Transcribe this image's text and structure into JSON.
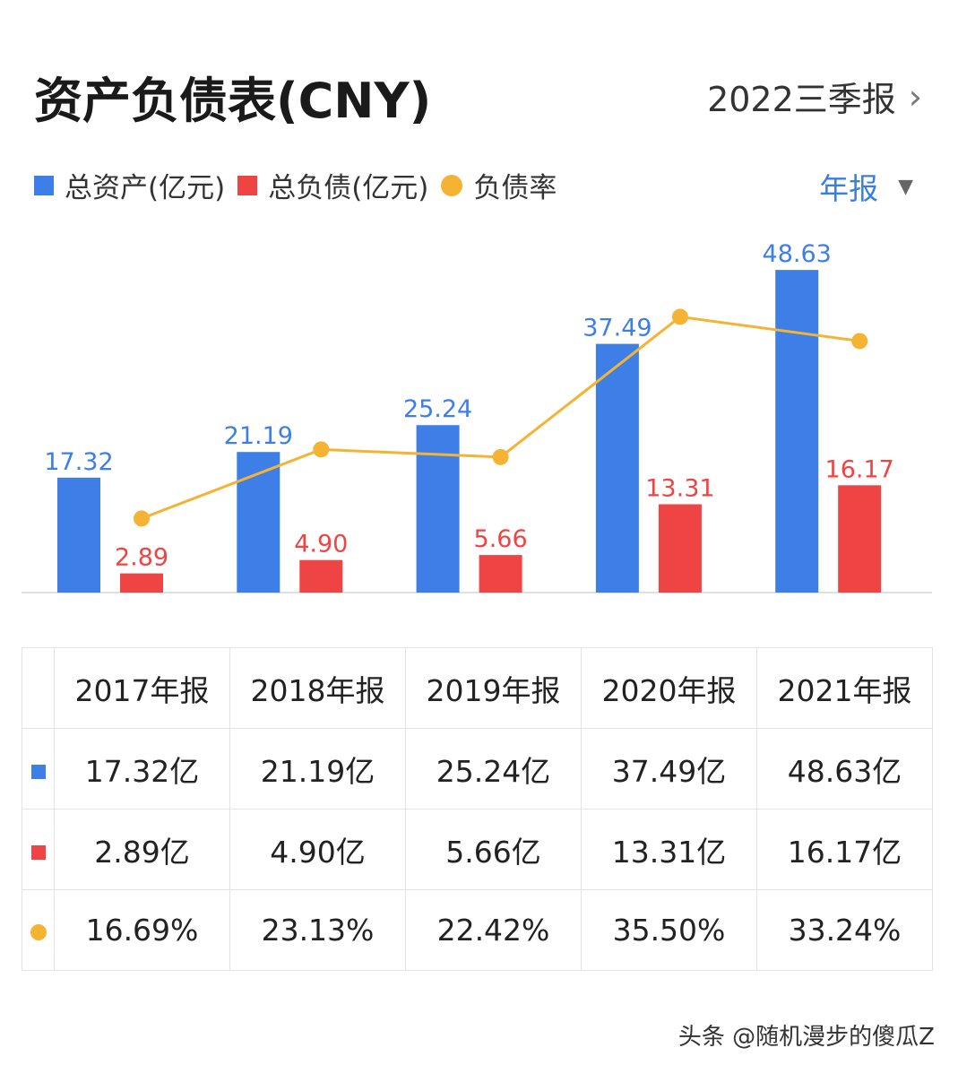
{
  "header": {
    "title": "资产负债表(CNY)",
    "period": "2022三季报"
  },
  "legend": {
    "assets": "总资产(亿元)",
    "liabilities": "总负债(亿元)",
    "ratio": "负债率"
  },
  "period_select": "年报",
  "colors": {
    "assets": "#3d7fe6",
    "liabilities": "#ef4444",
    "ratio": "#f5b334"
  },
  "chart_data": {
    "type": "bar",
    "categories": [
      "2017年报",
      "2018年报",
      "2019年报",
      "2020年报",
      "2021年报"
    ],
    "series": [
      {
        "name": "总资产(亿元)",
        "type": "bar",
        "values": [
          17.32,
          21.19,
          25.24,
          37.49,
          48.63
        ],
        "labels": [
          "17.32",
          "21.19",
          "25.24",
          "37.49",
          "48.63"
        ]
      },
      {
        "name": "总负债(亿元)",
        "type": "bar",
        "values": [
          2.89,
          4.9,
          5.66,
          13.31,
          16.17
        ],
        "labels": [
          "2.89",
          "4.90",
          "5.66",
          "13.31",
          "16.17"
        ]
      },
      {
        "name": "负债率",
        "type": "line",
        "values": [
          16.69,
          23.13,
          22.42,
          35.5,
          33.24
        ]
      }
    ]
  },
  "table": {
    "headers": [
      "2017年报",
      "2018年报",
      "2019年报",
      "2020年报",
      "2021年报"
    ],
    "rows": [
      [
        "17.32亿",
        "21.19亿",
        "25.24亿",
        "37.49亿",
        "48.63亿"
      ],
      [
        "2.89亿",
        "4.90亿",
        "5.66亿",
        "13.31亿",
        "16.17亿"
      ],
      [
        "16.69%",
        "23.13%",
        "22.42%",
        "35.50%",
        "33.24%"
      ]
    ]
  },
  "watermark": "头条 @随机漫步的傻瓜Z"
}
